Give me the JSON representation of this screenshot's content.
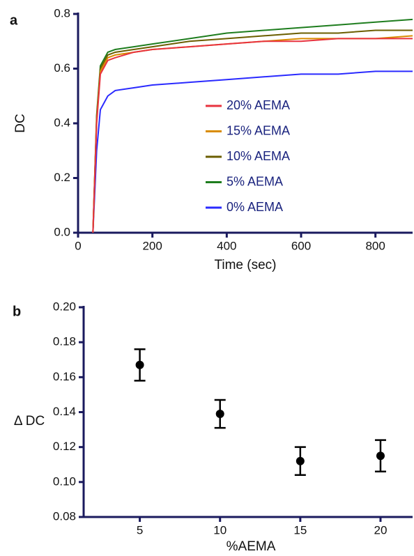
{
  "chart_data": [
    {
      "type": "line",
      "label": "a",
      "ylabel": "DC",
      "xlabel": "Time (sec)",
      "xlim": [
        0,
        900
      ],
      "xticks": [
        0,
        200,
        400,
        600,
        800
      ],
      "ylim": [
        0,
        0.8
      ],
      "yticks": [
        {
          "value": 0,
          "label": "0.0"
        },
        0.2,
        0.4,
        0.6,
        0.8
      ],
      "x": [
        40,
        50,
        60,
        80,
        100,
        150,
        200,
        300,
        400,
        500,
        600,
        700,
        800,
        900
      ],
      "series": [
        {
          "name": "20% AEMA",
          "color": "#e8333f",
          "values": [
            0,
            0.4,
            0.58,
            0.63,
            0.64,
            0.66,
            0.67,
            0.68,
            0.69,
            0.7,
            0.7,
            0.71,
            0.71,
            0.71
          ]
        },
        {
          "name": "15% AEMA",
          "color": "#d98c00",
          "values": [
            0,
            0.41,
            0.59,
            0.64,
            0.65,
            0.66,
            0.67,
            0.68,
            0.69,
            0.7,
            0.71,
            0.71,
            0.71,
            0.72
          ]
        },
        {
          "name": "10% AEMA",
          "color": "#6b5e00",
          "values": [
            0,
            0.42,
            0.6,
            0.65,
            0.66,
            0.67,
            0.68,
            0.7,
            0.71,
            0.72,
            0.73,
            0.73,
            0.74,
            0.74
          ]
        },
        {
          "name": "5% AEMA",
          "color": "#1e7d1e",
          "values": [
            0,
            0.43,
            0.61,
            0.66,
            0.67,
            0.68,
            0.69,
            0.71,
            0.73,
            0.74,
            0.75,
            0.76,
            0.77,
            0.78
          ]
        },
        {
          "name": "0% AEMA",
          "color": "#2a2aff",
          "values": [
            0,
            0.3,
            0.45,
            0.5,
            0.52,
            0.53,
            0.54,
            0.55,
            0.56,
            0.57,
            0.58,
            0.58,
            0.59,
            0.59
          ]
        }
      ]
    },
    {
      "type": "scatter",
      "label": "b",
      "ylabel": "Δ DC",
      "xlabel": "%AEMA",
      "xlim": [
        1.5,
        22
      ],
      "xticks": [
        5,
        10,
        15,
        20
      ],
      "ylim": [
        0.08,
        0.2
      ],
      "yticks": [
        0.08,
        {
          "value": 0.1,
          "label": "0.10"
        },
        0.12,
        0.14,
        0.16,
        0.18,
        {
          "value": 0.2,
          "label": "0.20"
        }
      ],
      "x": [
        5,
        10,
        15,
        20
      ],
      "values": [
        0.167,
        0.139,
        0.112,
        0.115
      ],
      "yerr": [
        0.009,
        0.008,
        0.008,
        0.009
      ],
      "color": "#000000"
    }
  ]
}
